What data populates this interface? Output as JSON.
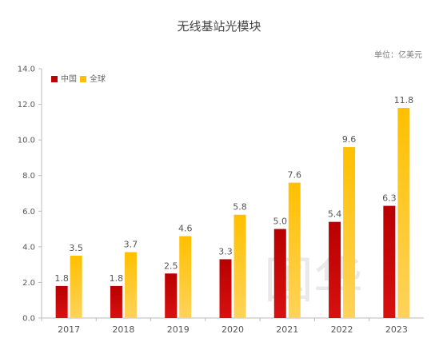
{
  "chart_data": {
    "type": "bar",
    "title": "无线基站光模块",
    "unit_note": "单位：亿美元",
    "categories": [
      "2017",
      "2018",
      "2019",
      "2020",
      "2021",
      "2022",
      "2023"
    ],
    "series": [
      {
        "name": "中国",
        "color": "#c00000",
        "values": [
          1.8,
          1.8,
          2.5,
          3.3,
          5.0,
          5.4,
          6.3
        ]
      },
      {
        "name": "全球",
        "color": "#ffc000",
        "values": [
          3.5,
          3.7,
          4.6,
          5.8,
          7.6,
          9.6,
          11.8
        ]
      }
    ],
    "ylim": [
      0,
      14
    ],
    "yticks": [
      "0.0",
      "2.0",
      "4.0",
      "6.0",
      "8.0",
      "10.0",
      "12.0",
      "14.0"
    ],
    "legend_position": "top-left",
    "grid": false,
    "watermark": "国华"
  }
}
